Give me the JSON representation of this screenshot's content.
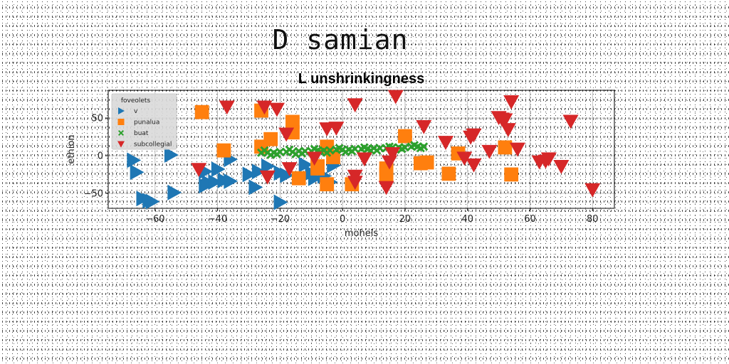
{
  "figure": {
    "suptitle": "D samian"
  },
  "chart_data": {
    "type": "scatter",
    "title": "L unshrinkingness",
    "xlabel": "mohels",
    "ylabel": "ethion",
    "xlim": [
      -75,
      87
    ],
    "ylim": [
      -70,
      87
    ],
    "xticks": [
      -60,
      -40,
      -20,
      0,
      20,
      40,
      60,
      80
    ],
    "yticks": [
      -50,
      0,
      50
    ],
    "grid": true,
    "legend": {
      "title": "foveolets",
      "placement": "top-left"
    },
    "series": [
      {
        "name": "v",
        "marker": "triangle-right",
        "color": "#1f77b4",
        "points": [
          [
            -67,
            -6
          ],
          [
            -66,
            -22
          ],
          [
            -64,
            -57
          ],
          [
            -62,
            -60
          ],
          [
            -61,
            -61
          ],
          [
            -55,
            1
          ],
          [
            -54,
            -49
          ],
          [
            -44,
            -40
          ],
          [
            -44,
            -21
          ],
          [
            -43,
            -36
          ],
          [
            -41,
            -35
          ],
          [
            -40,
            -18
          ],
          [
            -38,
            -33
          ],
          [
            -36,
            -34
          ],
          [
            -36,
            -5
          ],
          [
            -30,
            -25
          ],
          [
            -28,
            -42
          ],
          [
            -27,
            -21
          ],
          [
            -24,
            -14
          ],
          [
            -20,
            -62
          ],
          [
            -20,
            -23
          ],
          [
            -18,
            -26
          ],
          [
            -12,
            -12
          ],
          [
            -10,
            -23
          ],
          [
            -9,
            -30
          ],
          [
            -6,
            -27
          ],
          [
            -4,
            -35
          ],
          [
            -3,
            -13
          ]
        ]
      },
      {
        "name": "punalua",
        "marker": "square",
        "color": "#ff7f0e",
        "points": [
          [
            -45,
            58
          ],
          [
            -38,
            7
          ],
          [
            -26,
            12
          ],
          [
            -26,
            60
          ],
          [
            -23,
            22
          ],
          [
            -16,
            45
          ],
          [
            -16,
            31
          ],
          [
            -14,
            -30
          ],
          [
            -8,
            -14
          ],
          [
            -8,
            -17
          ],
          [
            -5,
            -38
          ],
          [
            -5,
            12
          ],
          [
            -3,
            -2
          ],
          [
            3,
            -38
          ],
          [
            14,
            -17
          ],
          [
            14,
            -25
          ],
          [
            20,
            26
          ],
          [
            25,
            -10
          ],
          [
            27,
            -9
          ],
          [
            34,
            -24
          ],
          [
            37,
            3
          ],
          [
            52,
            11
          ],
          [
            54,
            -25
          ]
        ]
      },
      {
        "name": "buat",
        "marker": "x-filled",
        "color": "#2ca02c",
        "points": [
          [
            -26,
            4
          ],
          [
            -24,
            4
          ],
          [
            -22,
            4
          ],
          [
            -20,
            5
          ],
          [
            -18,
            5
          ],
          [
            -16,
            5
          ],
          [
            -14,
            6
          ],
          [
            -12,
            6
          ],
          [
            -10,
            6
          ],
          [
            -8,
            7
          ],
          [
            -6,
            7
          ],
          [
            -4,
            7
          ],
          [
            -2,
            8
          ],
          [
            0,
            8
          ],
          [
            2,
            8
          ],
          [
            4,
            9
          ],
          [
            6,
            9
          ],
          [
            8,
            9
          ],
          [
            10,
            10
          ],
          [
            12,
            10
          ],
          [
            14,
            10
          ],
          [
            16,
            11
          ],
          [
            18,
            11
          ],
          [
            20,
            11
          ],
          [
            22,
            12
          ],
          [
            24,
            12
          ],
          [
            26,
            12
          ],
          [
            -25,
            7
          ],
          [
            -21,
            2
          ],
          [
            -17,
            8
          ],
          [
            -13,
            3
          ],
          [
            -9,
            9
          ],
          [
            -5,
            4
          ],
          [
            -1,
            10
          ],
          [
            3,
            6
          ],
          [
            7,
            11
          ],
          [
            11,
            7
          ],
          [
            15,
            12
          ],
          [
            19,
            9
          ],
          [
            23,
            14
          ],
          [
            -23,
            1
          ],
          [
            -15,
            2
          ],
          [
            -7,
            5
          ],
          [
            1,
            5
          ],
          [
            9,
            7
          ],
          [
            17,
            8
          ],
          [
            25,
            10
          ]
        ]
      },
      {
        "name": "subcollegial",
        "marker": "triangle-down",
        "color": "#d62728",
        "points": [
          [
            -46,
            -18
          ],
          [
            -37,
            65
          ],
          [
            -25,
            65
          ],
          [
            -24,
            -28
          ],
          [
            -21,
            62
          ],
          [
            -18,
            29
          ],
          [
            -17,
            -17
          ],
          [
            -9,
            -3
          ],
          [
            -5,
            36
          ],
          [
            -2,
            37
          ],
          [
            4,
            -27
          ],
          [
            4,
            -35
          ],
          [
            4,
            68
          ],
          [
            7,
            -4
          ],
          [
            14,
            -42
          ],
          [
            15,
            -8
          ],
          [
            16,
            3
          ],
          [
            17,
            79
          ],
          [
            26,
            39
          ],
          [
            33,
            18
          ],
          [
            39,
            -3
          ],
          [
            41,
            25
          ],
          [
            42,
            28
          ],
          [
            42,
            -12
          ],
          [
            47,
            6
          ],
          [
            50,
            51
          ],
          [
            51,
            49
          ],
          [
            52,
            48
          ],
          [
            53,
            35
          ],
          [
            54,
            72
          ],
          [
            56,
            9
          ],
          [
            63,
            -8
          ],
          [
            65,
            -7
          ],
          [
            66,
            -4
          ],
          [
            70,
            -14
          ],
          [
            73,
            46
          ],
          [
            80,
            -45
          ]
        ]
      }
    ]
  }
}
